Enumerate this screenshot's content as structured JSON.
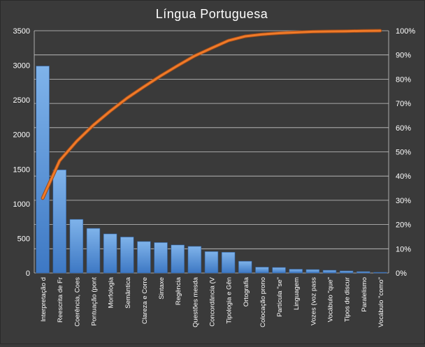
{
  "chart_data": {
    "type": "bar",
    "title": "Língua Portuguesa",
    "categories": [
      "Interpretação d",
      "Reescrita de Fr",
      "Coerência, Coes",
      "Pontuação (pont",
      "Morfologia",
      "Semântica",
      "Clareza e Corre",
      "Sintaxe",
      "Regência",
      "Questões mesda",
      "Concordância (V",
      "Tipologia e Gên",
      "Ortografia",
      "Colocação prono",
      "Partícula \"se\"",
      "Linguagem",
      "Vozes (voz pass",
      "Vocábulo \"que\"",
      "Tipos de discur",
      "Paralelismo",
      "Vocábulo \"como\""
    ],
    "series": [
      {
        "type": "bar",
        "axis": "left",
        "values": [
          2990,
          1490,
          775,
          645,
          565,
          520,
          455,
          440,
          405,
          385,
          310,
          300,
          170,
          85,
          80,
          55,
          50,
          40,
          30,
          20,
          10
        ]
      },
      {
        "type": "line",
        "axis": "right",
        "values": [
          30.9,
          46.3,
          54.3,
          61.0,
          66.8,
          72.2,
          76.9,
          81.4,
          85.6,
          89.6,
          92.8,
          95.9,
          97.7,
          98.5,
          99.0,
          99.3,
          99.6,
          99.7,
          99.8,
          99.95,
          100
        ]
      }
    ],
    "y_left": {
      "ylim": [
        0,
        3500
      ],
      "ticks": [
        "0",
        "500",
        "1000",
        "1500",
        "2000",
        "2500",
        "3000",
        "3500"
      ]
    },
    "y_right": {
      "ylim": [
        0,
        100
      ],
      "ticks": [
        "0%",
        "10%",
        "20%",
        "30%",
        "40%",
        "50%",
        "60%",
        "70%",
        "80%",
        "90%",
        "100%"
      ]
    },
    "grid": true,
    "legend": "none",
    "colors": {
      "background": "#3a3a3a",
      "bar_top": "#7fb3ea",
      "bar_bottom": "#3d78c4",
      "line": "#f07a28",
      "line_outline": "#9a4a1a",
      "grid": "#c8c8c8",
      "text": "#ffffff"
    }
  }
}
